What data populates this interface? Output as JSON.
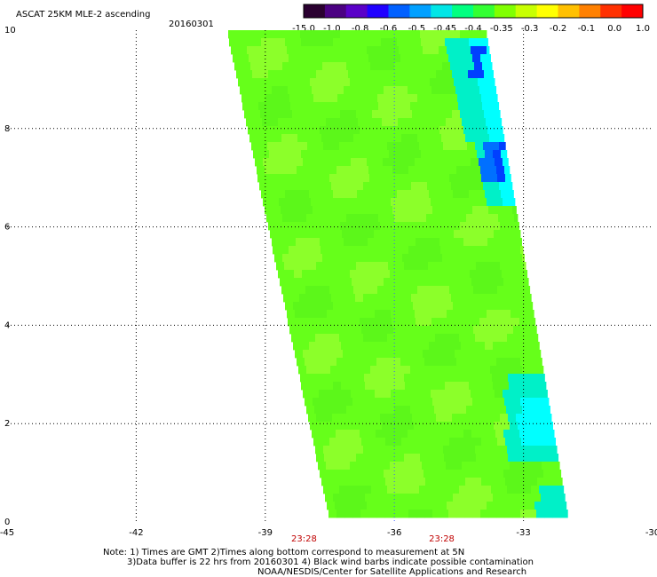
{
  "header": {
    "title": "ASCAT 25KM MLE-2 ascending",
    "date": "20160301"
  },
  "colorbar": {
    "labels": [
      "-15.0",
      "-1.0",
      "-0.8",
      "-0.6",
      "-0.5",
      "-0.45",
      "-0.4",
      "-0.35",
      "-0.3",
      "-0.2",
      "-0.1",
      "0.0",
      "1.0"
    ],
    "colors": [
      "#2a0030",
      "#4b0082",
      "#5a00c8",
      "#2000ff",
      "#0060ff",
      "#00a0ff",
      "#00e6e6",
      "#00ff80",
      "#33ff33",
      "#80ff00",
      "#c8ff00",
      "#ffff00",
      "#ffc000",
      "#ff8000",
      "#ff3000",
      "#ff0000"
    ]
  },
  "axes": {
    "x_ticks": [
      "-45",
      "-42",
      "-39",
      "-36",
      "-33",
      "-30"
    ],
    "y_ticks": [
      "0",
      "2",
      "4",
      "6",
      "8",
      "10"
    ],
    "xlim": [
      -45,
      -30
    ],
    "ylim": [
      0,
      10
    ],
    "times": [
      {
        "label": "23:28",
        "lon": -38.1
      },
      {
        "label": "23:28",
        "lon": -34.9
      }
    ]
  },
  "swath": {
    "description_colors": {
      "base": "#66ff1a",
      "light": "#8cff2a",
      "teal": "#00f0c8",
      "cyan": "#00ffff",
      "deep": "#0040ff"
    }
  },
  "notes": {
    "line1": "Note: 1) Times are GMT 2)Times along bottom correspond to measurement at 5N",
    "line2": "3)Data buffer is 22 hrs from 20160301 4) Black wind barbs indicate possible contamination",
    "line3": "NOAA/NESDIS/Center for Satellite Applications and Research"
  }
}
